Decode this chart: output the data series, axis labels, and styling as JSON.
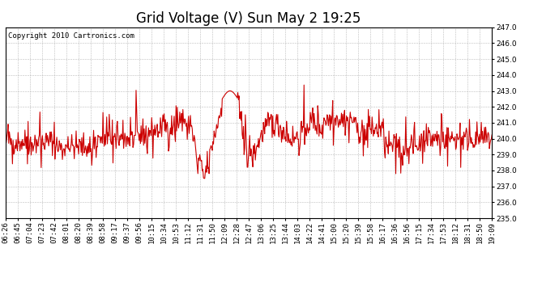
{
  "title": "Grid Voltage (V) Sun May 2 19:25",
  "copyright": "Copyright 2010 Cartronics.com",
  "line_color": "#cc0000",
  "background_color": "#ffffff",
  "grid_color": "#bbbbbb",
  "ylim": [
    235.0,
    247.0
  ],
  "yticks": [
    235.0,
    236.0,
    237.0,
    238.0,
    239.0,
    240.0,
    241.0,
    242.0,
    243.0,
    244.0,
    245.0,
    246.0,
    247.0
  ],
  "xtick_labels": [
    "06:26",
    "06:45",
    "07:04",
    "07:23",
    "07:42",
    "08:01",
    "08:20",
    "08:39",
    "08:58",
    "09:17",
    "09:37",
    "09:56",
    "10:15",
    "10:34",
    "10:53",
    "11:12",
    "11:31",
    "11:50",
    "12:09",
    "12:28",
    "12:47",
    "13:06",
    "13:25",
    "13:44",
    "14:03",
    "14:22",
    "14:41",
    "15:00",
    "15:20",
    "15:39",
    "15:58",
    "16:17",
    "16:36",
    "16:56",
    "17:15",
    "17:34",
    "17:53",
    "18:12",
    "18:31",
    "18:50",
    "19:09"
  ],
  "title_fontsize": 12,
  "tick_fontsize": 6.5,
  "copyright_fontsize": 6.5,
  "line_width": 0.8
}
